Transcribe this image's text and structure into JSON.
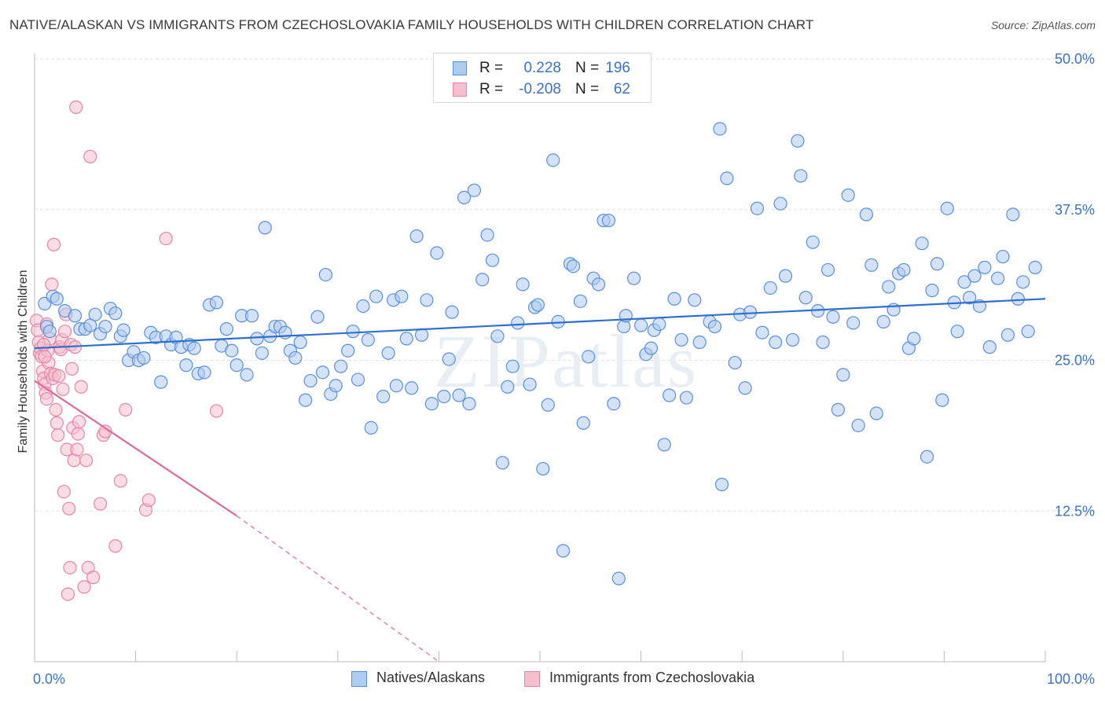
{
  "title": "NATIVE/ALASKAN VS IMMIGRANTS FROM CZECHOSLOVAKIA FAMILY HOUSEHOLDS WITH CHILDREN CORRELATION CHART",
  "source": "Source: ZipAtlas.com",
  "watermark": "ZIPatlas",
  "legend": {
    "r_label": "R =",
    "n_label": "N =",
    "series1": {
      "r": "0.228",
      "n": "196"
    },
    "series2": {
      "r": "-0.208",
      "n": "62"
    }
  },
  "colors": {
    "blue_fill": "#aecbf0",
    "blue_stroke": "#5b8fd6",
    "blue_line": "#2f6fd1",
    "pink_fill": "#f6bfd0",
    "pink_stroke": "#e486a6",
    "pink_line": "#e0689a",
    "tick_label": "#3b72c8",
    "grid": "#e2e2e2"
  },
  "chart_data": {
    "type": "scatter",
    "title": "NATIVE/ALASKAN VS IMMIGRANTS FROM CZECHOSLOVAKIA FAMILY HOUSEHOLDS WITH CHILDREN CORRELATION CHART",
    "xlabel": "",
    "ylabel": "Family Households with Children",
    "xlim": [
      0,
      100
    ],
    "ylim": [
      0,
      50
    ],
    "x_tick_labels": [
      "0.0%",
      "100.0%"
    ],
    "y_ticks": [
      12.5,
      25.0,
      37.5,
      50.0
    ],
    "y_tick_labels": [
      "12.5%",
      "25.0%",
      "37.5%",
      "50.0%"
    ],
    "grid": true,
    "legend_position": "top-center",
    "series": [
      {
        "name": "Natives/Alaskans",
        "color": "#5b8fd6",
        "trend": {
          "x": [
            0,
            100
          ],
          "y": [
            26.0,
            30.1
          ]
        },
        "points": [
          [
            1.0,
            29.7
          ],
          [
            1.2,
            27.8
          ],
          [
            1.5,
            27.4
          ],
          [
            1.8,
            30.3
          ],
          [
            2.2,
            30.1
          ],
          [
            3.0,
            29.1
          ],
          [
            4.0,
            28.7
          ],
          [
            4.5,
            27.6
          ],
          [
            5.0,
            27.6
          ],
          [
            5.5,
            27.9
          ],
          [
            6.0,
            28.8
          ],
          [
            6.5,
            27.2
          ],
          [
            7.0,
            27.8
          ],
          [
            7.5,
            29.3
          ],
          [
            8.0,
            28.9
          ],
          [
            8.5,
            27.0
          ],
          [
            8.8,
            27.5
          ],
          [
            9.3,
            25.0
          ],
          [
            9.8,
            25.7
          ],
          [
            10.3,
            25.0
          ],
          [
            10.8,
            25.2
          ],
          [
            11.5,
            27.3
          ],
          [
            12.0,
            26.9
          ],
          [
            12.5,
            23.2
          ],
          [
            13.0,
            27.0
          ],
          [
            13.5,
            26.3
          ],
          [
            14.0,
            26.9
          ],
          [
            14.5,
            26.1
          ],
          [
            15.0,
            24.6
          ],
          [
            15.3,
            26.3
          ],
          [
            15.8,
            26.0
          ],
          [
            16.2,
            23.9
          ],
          [
            16.8,
            24.0
          ],
          [
            17.3,
            29.6
          ],
          [
            18.0,
            29.8
          ],
          [
            18.5,
            26.2
          ],
          [
            19.0,
            27.6
          ],
          [
            19.5,
            25.8
          ],
          [
            20.0,
            24.6
          ],
          [
            20.5,
            28.7
          ],
          [
            21.0,
            23.8
          ],
          [
            21.5,
            28.7
          ],
          [
            22.0,
            26.8
          ],
          [
            22.5,
            25.6
          ],
          [
            22.8,
            36.0
          ],
          [
            23.3,
            27.0
          ],
          [
            23.8,
            27.8
          ],
          [
            24.3,
            27.8
          ],
          [
            24.8,
            27.3
          ],
          [
            25.3,
            25.8
          ],
          [
            25.8,
            25.2
          ],
          [
            26.3,
            26.5
          ],
          [
            26.8,
            21.7
          ],
          [
            27.3,
            23.3
          ],
          [
            28.0,
            28.6
          ],
          [
            28.5,
            24.0
          ],
          [
            28.8,
            32.1
          ],
          [
            29.3,
            22.2
          ],
          [
            29.8,
            22.9
          ],
          [
            30.3,
            24.5
          ],
          [
            31.0,
            25.8
          ],
          [
            31.5,
            27.4
          ],
          [
            32.0,
            23.4
          ],
          [
            32.5,
            29.5
          ],
          [
            33.0,
            26.7
          ],
          [
            33.3,
            19.4
          ],
          [
            33.8,
            30.3
          ],
          [
            34.5,
            22.0
          ],
          [
            35.0,
            25.6
          ],
          [
            35.5,
            30.0
          ],
          [
            35.8,
            22.9
          ],
          [
            36.3,
            30.3
          ],
          [
            36.8,
            26.8
          ],
          [
            37.3,
            22.7
          ],
          [
            37.8,
            35.3
          ],
          [
            38.3,
            27.1
          ],
          [
            38.8,
            30.0
          ],
          [
            39.3,
            21.4
          ],
          [
            39.8,
            33.9
          ],
          [
            40.5,
            22.0
          ],
          [
            41.0,
            25.1
          ],
          [
            41.3,
            29.0
          ],
          [
            42.0,
            22.1
          ],
          [
            42.5,
            38.5
          ],
          [
            43.0,
            21.4
          ],
          [
            43.5,
            39.1
          ],
          [
            44.3,
            31.7
          ],
          [
            44.8,
            35.4
          ],
          [
            45.3,
            33.3
          ],
          [
            45.8,
            27.0
          ],
          [
            46.3,
            16.5
          ],
          [
            46.8,
            22.8
          ],
          [
            47.3,
            24.5
          ],
          [
            47.8,
            28.1
          ],
          [
            48.3,
            31.3
          ],
          [
            49.0,
            23.0
          ],
          [
            49.5,
            29.4
          ],
          [
            49.8,
            29.6
          ],
          [
            50.3,
            16.0
          ],
          [
            50.8,
            21.3
          ],
          [
            51.3,
            41.6
          ],
          [
            51.8,
            28.2
          ],
          [
            52.3,
            9.2
          ],
          [
            53.0,
            33.0
          ],
          [
            53.3,
            32.8
          ],
          [
            54.0,
            29.9
          ],
          [
            54.3,
            19.8
          ],
          [
            54.8,
            25.3
          ],
          [
            55.3,
            31.8
          ],
          [
            55.8,
            31.3
          ],
          [
            56.3,
            36.6
          ],
          [
            56.8,
            36.6
          ],
          [
            57.3,
            21.4
          ],
          [
            57.8,
            6.9
          ],
          [
            58.3,
            27.8
          ],
          [
            58.5,
            28.7
          ],
          [
            59.3,
            31.8
          ],
          [
            60.0,
            27.9
          ],
          [
            60.5,
            25.5
          ],
          [
            61.0,
            26.0
          ],
          [
            61.3,
            27.5
          ],
          [
            61.8,
            28.0
          ],
          [
            62.3,
            18.0
          ],
          [
            62.8,
            22.1
          ],
          [
            63.3,
            30.1
          ],
          [
            64.0,
            26.7
          ],
          [
            64.5,
            21.9
          ],
          [
            65.3,
            30.0
          ],
          [
            65.8,
            26.5
          ],
          [
            66.8,
            28.2
          ],
          [
            67.3,
            27.8
          ],
          [
            67.8,
            44.2
          ],
          [
            68.0,
            14.7
          ],
          [
            68.5,
            40.1
          ],
          [
            69.3,
            24.8
          ],
          [
            69.8,
            28.8
          ],
          [
            70.3,
            22.7
          ],
          [
            70.8,
            29.0
          ],
          [
            71.5,
            37.6
          ],
          [
            72.0,
            27.3
          ],
          [
            72.8,
            31.0
          ],
          [
            73.3,
            26.5
          ],
          [
            73.8,
            38.0
          ],
          [
            74.3,
            32.0
          ],
          [
            75.0,
            26.7
          ],
          [
            75.5,
            43.2
          ],
          [
            75.8,
            40.3
          ],
          [
            76.3,
            30.2
          ],
          [
            77.0,
            34.8
          ],
          [
            77.5,
            29.1
          ],
          [
            78.0,
            26.5
          ],
          [
            78.5,
            32.5
          ],
          [
            79.0,
            28.6
          ],
          [
            79.5,
            20.9
          ],
          [
            80.0,
            23.8
          ],
          [
            80.5,
            38.7
          ],
          [
            81.0,
            28.1
          ],
          [
            81.5,
            19.6
          ],
          [
            82.3,
            37.1
          ],
          [
            82.8,
            32.9
          ],
          [
            83.3,
            20.6
          ],
          [
            84.0,
            28.2
          ],
          [
            84.5,
            31.1
          ],
          [
            85.0,
            29.2
          ],
          [
            85.5,
            32.2
          ],
          [
            86.0,
            32.5
          ],
          [
            86.5,
            26.0
          ],
          [
            87.0,
            26.8
          ],
          [
            87.8,
            34.7
          ],
          [
            88.3,
            17.0
          ],
          [
            88.8,
            30.8
          ],
          [
            89.3,
            33.0
          ],
          [
            89.8,
            21.7
          ],
          [
            90.3,
            37.6
          ],
          [
            91.0,
            29.8
          ],
          [
            91.3,
            27.4
          ],
          [
            92.0,
            31.5
          ],
          [
            92.5,
            30.2
          ],
          [
            93.0,
            32.0
          ],
          [
            93.5,
            29.5
          ],
          [
            94.0,
            32.7
          ],
          [
            94.5,
            26.1
          ],
          [
            95.3,
            31.8
          ],
          [
            95.8,
            33.6
          ],
          [
            96.3,
            27.1
          ],
          [
            96.8,
            37.1
          ],
          [
            97.3,
            30.1
          ],
          [
            97.8,
            31.5
          ],
          [
            98.3,
            27.4
          ],
          [
            99.0,
            32.7
          ]
        ]
      },
      {
        "name": "Immigrants from Czechoslovakia",
        "color": "#e486a6",
        "trend": {
          "x": [
            0,
            20,
            40
          ],
          "y": [
            23.3,
            12.1,
            0.0
          ],
          "solid_until_x": 20
        },
        "points": [
          [
            0.2,
            28.3
          ],
          [
            0.3,
            27.5
          ],
          [
            0.4,
            26.5
          ],
          [
            0.5,
            25.6
          ],
          [
            0.6,
            26.0
          ],
          [
            0.7,
            25.3
          ],
          [
            0.8,
            24.1
          ],
          [
            0.9,
            23.5
          ],
          [
            1.0,
            23.0
          ],
          [
            1.1,
            22.3
          ],
          [
            1.2,
            21.8
          ],
          [
            1.3,
            25.8
          ],
          [
            1.4,
            24.8
          ],
          [
            1.5,
            26.8
          ],
          [
            1.6,
            23.9
          ],
          [
            1.7,
            31.3
          ],
          [
            1.8,
            23.5
          ],
          [
            1.9,
            34.6
          ],
          [
            2.0,
            23.8
          ],
          [
            2.1,
            20.9
          ],
          [
            2.2,
            19.8
          ],
          [
            2.3,
            18.8
          ],
          [
            2.4,
            23.7
          ],
          [
            2.5,
            26.1
          ],
          [
            2.6,
            25.9
          ],
          [
            2.7,
            26.7
          ],
          [
            2.8,
            22.6
          ],
          [
            2.9,
            14.1
          ],
          [
            3.0,
            27.4
          ],
          [
            3.1,
            28.8
          ],
          [
            3.2,
            17.6
          ],
          [
            3.3,
            5.6
          ],
          [
            3.4,
            12.7
          ],
          [
            3.5,
            7.8
          ],
          [
            3.6,
            26.3
          ],
          [
            3.7,
            24.3
          ],
          [
            3.8,
            19.4
          ],
          [
            3.9,
            16.7
          ],
          [
            4.0,
            26.1
          ],
          [
            4.1,
            46.0
          ],
          [
            4.2,
            17.6
          ],
          [
            4.3,
            18.9
          ],
          [
            4.4,
            19.9
          ],
          [
            4.6,
            22.8
          ],
          [
            4.9,
            6.2
          ],
          [
            5.1,
            16.7
          ],
          [
            5.3,
            7.8
          ],
          [
            5.5,
            41.9
          ],
          [
            5.8,
            7.0
          ],
          [
            6.5,
            13.1
          ],
          [
            6.8,
            18.8
          ],
          [
            7.0,
            19.1
          ],
          [
            8.0,
            9.6
          ],
          [
            8.5,
            15.0
          ],
          [
            9.0,
            20.9
          ],
          [
            11.0,
            12.6
          ],
          [
            11.3,
            13.4
          ],
          [
            13.0,
            35.1
          ],
          [
            18.0,
            20.8
          ],
          [
            1.0,
            25.3
          ],
          [
            1.2,
            28.0
          ],
          [
            0.9,
            26.3
          ]
        ]
      }
    ]
  },
  "bottom_legend": {
    "series1_label": "Natives/Alaskans",
    "series2_label": "Immigrants from Czechoslovakia"
  }
}
